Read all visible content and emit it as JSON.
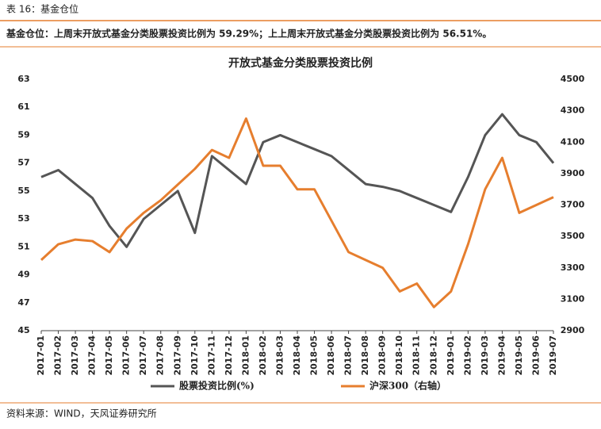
{
  "header": {
    "title": "表 16：基金仓位",
    "subtitle": "基金仓位：上周末开放式基金分类股票投资比例为 59.29%；上上周末开放式基金分类股票投资比例为 56.51%。",
    "source": "资料来源：WIND，天风证券研究所"
  },
  "chart_data": {
    "type": "line",
    "title": "开放式基金分类股票投资比例",
    "x": [
      "2017-01",
      "2017-02",
      "2017-03",
      "2017-04",
      "2017-05",
      "2017-06",
      "2017-07",
      "2017-08",
      "2017-09",
      "2017-10",
      "2017-11",
      "2017-12",
      "2018-01",
      "2018-02",
      "2018-03",
      "2018-04",
      "2018-05",
      "2018-06",
      "2018-07",
      "2018-08",
      "2018-09",
      "2018-10",
      "2018-11",
      "2018-12",
      "2019-01",
      "2019-02",
      "2019-03",
      "2019-04",
      "2019-05",
      "2019-06",
      "2019-07"
    ],
    "series": [
      {
        "name": "股票投资比例(%)",
        "color": "#555555",
        "values": [
          56,
          56.5,
          55.5,
          54.5,
          52.5,
          51,
          53,
          54,
          55,
          52,
          57.5,
          56.5,
          55.5,
          58.5,
          59,
          58.5,
          58,
          57.5,
          56.5,
          55.5,
          55.3,
          55,
          54.5,
          54,
          53.5,
          56,
          59,
          60.5,
          59,
          58.5,
          57
        ]
      },
      {
        "name": "沪深300（右轴）",
        "color": "#e67e2e",
        "axis": "y2",
        "values": [
          3350,
          3450,
          3480,
          3470,
          3400,
          3550,
          3650,
          3730,
          3830,
          3930,
          4050,
          4000,
          4250,
          3950,
          3950,
          3800,
          3800,
          3600,
          3400,
          3350,
          3300,
          3150,
          3200,
          3050,
          3150,
          3450,
          3800,
          4000,
          3650,
          3700,
          3750
        ]
      }
    ],
    "ylim": [
      45,
      63
    ],
    "yticks": [
      45,
      47,
      49,
      51,
      53,
      55,
      57,
      59,
      61,
      63
    ],
    "y2lim": [
      2900,
      4500
    ],
    "y2ticks": [
      2900,
      3100,
      3300,
      3500,
      3700,
      3900,
      4100,
      4300,
      4500
    ]
  }
}
